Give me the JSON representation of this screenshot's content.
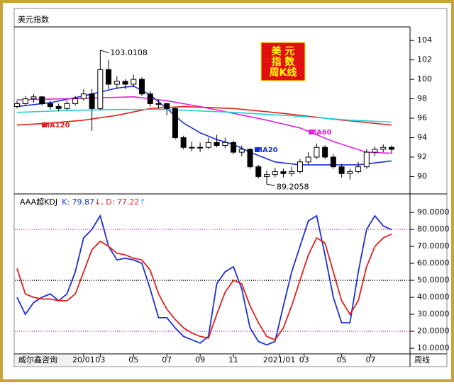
{
  "chart_data": [
    {
      "type": "candlestick",
      "title": "美元指数",
      "xlim": [
        -0.5,
        45.5
      ],
      "ylim": [
        88.5,
        105.4
      ],
      "yticks": [
        90,
        92,
        94,
        96,
        98,
        100,
        102,
        104
      ],
      "up_color": "#ffffff",
      "down_color": "#000000",
      "candles": [
        [
          97.2,
          97.8,
          97.0,
          97.5
        ],
        [
          97.5,
          98.3,
          97.3,
          98.0
        ],
        [
          98.0,
          98.5,
          97.6,
          98.2
        ],
        [
          98.2,
          98.3,
          97.3,
          97.5
        ],
        [
          97.5,
          97.8,
          96.9,
          97.2
        ],
        [
          97.2,
          97.5,
          96.7,
          97.0
        ],
        [
          97.0,
          97.8,
          96.8,
          97.5
        ],
        [
          97.5,
          98.3,
          97.3,
          98.0
        ],
        [
          98.0,
          99.0,
          97.8,
          98.5
        ],
        [
          98.5,
          99.0,
          94.7,
          97.0
        ],
        [
          97.0,
          103.0108,
          96.8,
          101.0
        ],
        [
          101.0,
          102.0,
          99.0,
          99.5
        ],
        [
          99.5,
          100.3,
          99.0,
          99.8
        ],
        [
          99.8,
          100.0,
          99.0,
          99.5
        ],
        [
          99.5,
          100.5,
          99.2,
          100.0
        ],
        [
          100.0,
          100.2,
          98.3,
          98.5
        ],
        [
          98.5,
          98.8,
          97.2,
          97.5
        ],
        [
          97.5,
          97.9,
          97.0,
          97.5
        ],
        [
          97.5,
          97.6,
          96.3,
          97.0
        ],
        [
          97.0,
          97.1,
          93.8,
          94.0
        ],
        [
          94.0,
          94.2,
          92.8,
          93.0
        ],
        [
          93.0,
          93.6,
          92.6,
          93.0
        ],
        [
          93.0,
          93.5,
          92.5,
          93.0
        ],
        [
          93.0,
          94.0,
          92.8,
          93.5
        ],
        [
          93.5,
          94.3,
          93.0,
          93.2
        ],
        [
          93.2,
          94.0,
          92.9,
          93.5
        ],
        [
          93.5,
          93.7,
          92.3,
          92.5
        ],
        [
          92.5,
          93.2,
          92.1,
          92.8
        ],
        [
          92.8,
          92.9,
          90.8,
          91.0
        ],
        [
          91.0,
          91.2,
          89.8,
          90.0
        ],
        [
          90.0,
          90.6,
          89.2058,
          90.2
        ],
        [
          90.2,
          90.9,
          89.9,
          90.5
        ],
        [
          90.5,
          90.8,
          89.9,
          90.3
        ],
        [
          90.3,
          91.0,
          90.0,
          90.5
        ],
        [
          90.5,
          91.8,
          90.3,
          91.5
        ],
        [
          91.5,
          92.5,
          91.2,
          92.0
        ],
        [
          92.0,
          93.4,
          91.8,
          93.0
        ],
        [
          93.0,
          93.2,
          91.8,
          92.0
        ],
        [
          92.0,
          92.3,
          90.8,
          91.0
        ],
        [
          91.0,
          91.3,
          89.9,
          90.3
        ],
        [
          90.3,
          90.8,
          89.7,
          90.5
        ],
        [
          90.5,
          91.5,
          90.3,
          91.0
        ],
        [
          91.0,
          92.8,
          90.8,
          92.5
        ],
        [
          92.5,
          93.1,
          92.1,
          92.8
        ],
        [
          92.8,
          93.3,
          92.5,
          93.0
        ],
        [
          93.0,
          93.2,
          92.4,
          92.8
        ]
      ],
      "series": [
        {
          "name": "MA20",
          "color": "#1a2fd6",
          "x": [
            0,
            4,
            8,
            12,
            14,
            16,
            18,
            20,
            22,
            24,
            26,
            28,
            31,
            34,
            38,
            41,
            45
          ],
          "values": [
            97.2,
            97.6,
            98.3,
            99.1,
            99.3,
            98.4,
            97.0,
            95.5,
            94.5,
            93.8,
            93.3,
            92.5,
            91.5,
            91.2,
            91.2,
            91.2,
            91.6
          ]
        },
        {
          "name": "MA60",
          "color": "#e020e0",
          "x": [
            0,
            6,
            10,
            14,
            18,
            22,
            26,
            30,
            34,
            38,
            42,
            45
          ],
          "values": [
            97.9,
            98.0,
            98.1,
            98.2,
            97.8,
            97.2,
            96.5,
            95.8,
            95.0,
            93.6,
            92.5,
            92.4
          ]
        },
        {
          "name": "MA120",
          "color": "#e0201a",
          "x": [
            0,
            4,
            8,
            12,
            16,
            20,
            26,
            32,
            38,
            45
          ],
          "values": [
            95.3,
            95.5,
            95.8,
            96.3,
            97.0,
            97.2,
            97.0,
            96.5,
            95.9,
            95.3
          ]
        },
        {
          "color": "#20d0d8",
          "x": [
            0,
            6,
            12,
            18,
            26,
            34,
            40,
            45
          ],
          "values": [
            96.6,
            96.8,
            96.9,
            96.9,
            96.6,
            96.2,
            95.8,
            95.6
          ]
        }
      ],
      "annotations": [
        {
          "text": "103.0108",
          "x": 10,
          "y": 103.0108
        },
        {
          "text": "89.2058",
          "x": 30,
          "y": 89.2058
        }
      ]
    },
    {
      "type": "line",
      "header": {
        "name": "AAA超KDJ",
        "k_text": "K: 79.87",
        "k_arrow": "↓",
        "d_text": ", D: 77.22",
        "d_arrow": "↑"
      },
      "xlim": [
        -0.5,
        45.5
      ],
      "ylim": [
        6.7,
        96.3
      ],
      "yticks": [
        {
          "value": 10,
          "label": "10.0000"
        },
        {
          "value": 20,
          "label": "20.0000"
        },
        {
          "value": 30,
          "label": "30.0000"
        },
        {
          "value": 40,
          "label": "40.0000"
        },
        {
          "value": 50,
          "label": "50.0000"
        },
        {
          "value": 60,
          "label": "60.0000"
        },
        {
          "value": 70,
          "label": "70.0000"
        },
        {
          "value": 80,
          "label": "80.0000"
        },
        {
          "value": 90,
          "label": "90.0000"
        }
      ],
      "xticks": [
        {
          "value": 8,
          "label": "20/01"
        },
        {
          "value": 10,
          "label": "03"
        },
        {
          "value": 14,
          "label": "05"
        },
        {
          "value": 18,
          "label": "07"
        },
        {
          "value": 22,
          "label": "09"
        },
        {
          "value": 26,
          "label": "11"
        },
        {
          "value": 31.5,
          "label": "2021/01"
        },
        {
          "value": 34.5,
          "label": "03"
        },
        {
          "value": 39,
          "label": "05"
        },
        {
          "value": 42.5,
          "label": "07"
        }
      ],
      "ref_lines": [
        {
          "value": 80,
          "color": "#e040e0"
        },
        {
          "value": 50,
          "color": "#000000"
        },
        {
          "value": 20,
          "color": "#e040e0"
        }
      ],
      "series": [
        {
          "name": "K",
          "color": "#1a2fd6",
          "values": [
            40,
            30,
            37,
            40,
            42,
            38,
            42,
            55,
            75,
            80,
            88,
            70,
            62,
            63,
            62,
            60,
            45,
            28,
            28,
            22,
            17,
            15,
            13,
            17,
            48,
            55,
            58,
            45,
            22,
            14,
            12,
            14,
            35,
            55,
            70,
            85,
            88,
            65,
            40,
            25,
            25,
            55,
            80,
            88,
            82,
            79.87
          ]
        },
        {
          "name": "D",
          "color": "#e0201a",
          "values": [
            57,
            42,
            40,
            39,
            39,
            38,
            38,
            42,
            55,
            68,
            73,
            70,
            66,
            65,
            63,
            62,
            56,
            42,
            33,
            27,
            22,
            19,
            17,
            16,
            30,
            43,
            50,
            48,
            35,
            25,
            17,
            15,
            22,
            35,
            50,
            65,
            75,
            72,
            55,
            38,
            30,
            38,
            58,
            70,
            75,
            77.22
          ]
        }
      ]
    }
  ],
  "badge": [
    "美 元",
    "指 数",
    "周K线"
  ],
  "footer": {
    "left": "威尔鑫咨询",
    "right": "周线"
  }
}
